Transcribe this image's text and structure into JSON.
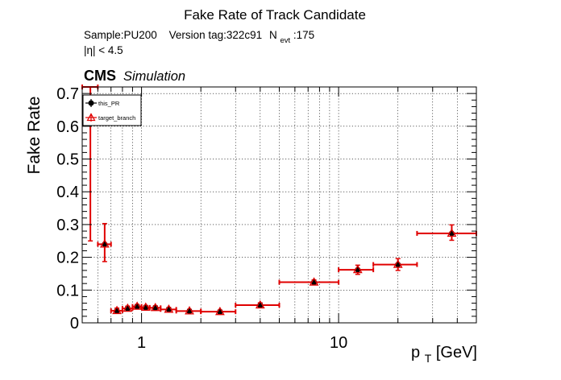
{
  "chart_data": {
    "type": "scatter",
    "title": "Fake Rate of Track Candidate",
    "subtitle_sample": "Sample:PU200",
    "subtitle_version": "Version tag:322c91",
    "subtitle_nevt_main": "N",
    "subtitle_nevt_sub": "evt",
    "subtitle_nevt_value": ":175",
    "selection": "|η| < 4.5",
    "cms_label": "CMS",
    "cms_sublabel": "Simulation",
    "ylabel": "Fake Rate",
    "xlabel_main": "p",
    "xlabel_sub": "T",
    "xlabel_unit": " [GeV]",
    "x_scale": "log",
    "xlim": [
      0.5,
      50
    ],
    "ylim": [
      0,
      0.72
    ],
    "grid": true,
    "legend_position": "top-left",
    "x_tick_labels": [
      {
        "value": 1,
        "label": "1"
      },
      {
        "value": 10,
        "label": "10"
      }
    ],
    "y_tick_labels": [
      {
        "value": 0,
        "label": "0"
      },
      {
        "value": 0.1,
        "label": "0.1"
      },
      {
        "value": 0.2,
        "label": "0.2"
      },
      {
        "value": 0.3,
        "label": "0.3"
      },
      {
        "value": 0.4,
        "label": "0.4"
      },
      {
        "value": 0.5,
        "label": "0.5"
      },
      {
        "value": 0.6,
        "label": "0.6"
      },
      {
        "value": 0.7,
        "label": "0.7"
      }
    ],
    "series": [
      {
        "name": "this_PR",
        "color": "#000000",
        "marker": "circle",
        "points": [
          {
            "x": 0.55,
            "xlo": 0.5,
            "xhi": 0.6,
            "y": 0.73,
            "ylo": 0.25,
            "yhi": 0.73
          },
          {
            "x": 0.65,
            "xlo": 0.6,
            "xhi": 0.7,
            "y": 0.24,
            "ylo": 0.187,
            "yhi": 0.303
          },
          {
            "x": 0.75,
            "xlo": 0.7,
            "xhi": 0.8,
            "y": 0.037,
            "ylo": 0.03,
            "yhi": 0.045
          },
          {
            "x": 0.85,
            "xlo": 0.8,
            "xhi": 0.9,
            "y": 0.044,
            "ylo": 0.038,
            "yhi": 0.051
          },
          {
            "x": 0.95,
            "xlo": 0.9,
            "xhi": 1.0,
            "y": 0.05,
            "ylo": 0.044,
            "yhi": 0.056
          },
          {
            "x": 1.05,
            "xlo": 1.0,
            "xhi": 1.1,
            "y": 0.047,
            "ylo": 0.041,
            "yhi": 0.053
          },
          {
            "x": 1.175,
            "xlo": 1.1,
            "xhi": 1.25,
            "y": 0.046,
            "ylo": 0.04,
            "yhi": 0.052
          },
          {
            "x": 1.375,
            "xlo": 1.25,
            "xhi": 1.5,
            "y": 0.041,
            "ylo": 0.036,
            "yhi": 0.047
          },
          {
            "x": 1.75,
            "xlo": 1.5,
            "xhi": 2.0,
            "y": 0.036,
            "ylo": 0.031,
            "yhi": 0.041
          },
          {
            "x": 2.5,
            "xlo": 2.0,
            "xhi": 3.0,
            "y": 0.034,
            "ylo": 0.029,
            "yhi": 0.039
          },
          {
            "x": 4.0,
            "xlo": 3.0,
            "xhi": 5.0,
            "y": 0.054,
            "ylo": 0.048,
            "yhi": 0.061
          },
          {
            "x": 7.5,
            "xlo": 5.0,
            "xhi": 10.0,
            "y": 0.124,
            "ylo": 0.117,
            "yhi": 0.131
          },
          {
            "x": 12.5,
            "xlo": 10.0,
            "xhi": 15.0,
            "y": 0.162,
            "ylo": 0.148,
            "yhi": 0.176
          },
          {
            "x": 20.0,
            "xlo": 15.0,
            "xhi": 25.0,
            "y": 0.178,
            "ylo": 0.16,
            "yhi": 0.196
          },
          {
            "x": 37.5,
            "xlo": 25.0,
            "xhi": 50.0,
            "y": 0.273,
            "ylo": 0.252,
            "yhi": 0.299
          }
        ]
      },
      {
        "name": "target_branch",
        "color": "#e00000",
        "marker": "triangle-open",
        "points": [
          {
            "x": 0.55,
            "xlo": 0.5,
            "xhi": 0.6,
            "y": 0.73,
            "ylo": 0.25,
            "yhi": 0.73
          },
          {
            "x": 0.65,
            "xlo": 0.6,
            "xhi": 0.7,
            "y": 0.24,
            "ylo": 0.187,
            "yhi": 0.303
          },
          {
            "x": 0.75,
            "xlo": 0.7,
            "xhi": 0.8,
            "y": 0.037,
            "ylo": 0.03,
            "yhi": 0.045
          },
          {
            "x": 0.85,
            "xlo": 0.8,
            "xhi": 0.9,
            "y": 0.044,
            "ylo": 0.038,
            "yhi": 0.051
          },
          {
            "x": 0.95,
            "xlo": 0.9,
            "xhi": 1.0,
            "y": 0.05,
            "ylo": 0.044,
            "yhi": 0.056
          },
          {
            "x": 1.05,
            "xlo": 1.0,
            "xhi": 1.1,
            "y": 0.047,
            "ylo": 0.041,
            "yhi": 0.053
          },
          {
            "x": 1.175,
            "xlo": 1.1,
            "xhi": 1.25,
            "y": 0.046,
            "ylo": 0.04,
            "yhi": 0.052
          },
          {
            "x": 1.375,
            "xlo": 1.25,
            "xhi": 1.5,
            "y": 0.041,
            "ylo": 0.036,
            "yhi": 0.047
          },
          {
            "x": 1.75,
            "xlo": 1.5,
            "xhi": 2.0,
            "y": 0.036,
            "ylo": 0.031,
            "yhi": 0.041
          },
          {
            "x": 2.5,
            "xlo": 2.0,
            "xhi": 3.0,
            "y": 0.034,
            "ylo": 0.029,
            "yhi": 0.039
          },
          {
            "x": 4.0,
            "xlo": 3.0,
            "xhi": 5.0,
            "y": 0.054,
            "ylo": 0.048,
            "yhi": 0.061
          },
          {
            "x": 7.5,
            "xlo": 5.0,
            "xhi": 10.0,
            "y": 0.124,
            "ylo": 0.117,
            "yhi": 0.131
          },
          {
            "x": 12.5,
            "xlo": 10.0,
            "xhi": 15.0,
            "y": 0.162,
            "ylo": 0.148,
            "yhi": 0.176
          },
          {
            "x": 20.0,
            "xlo": 15.0,
            "xhi": 25.0,
            "y": 0.178,
            "ylo": 0.16,
            "yhi": 0.196
          },
          {
            "x": 37.5,
            "xlo": 25.0,
            "xhi": 50.0,
            "y": 0.273,
            "ylo": 0.252,
            "yhi": 0.299
          }
        ]
      }
    ]
  }
}
